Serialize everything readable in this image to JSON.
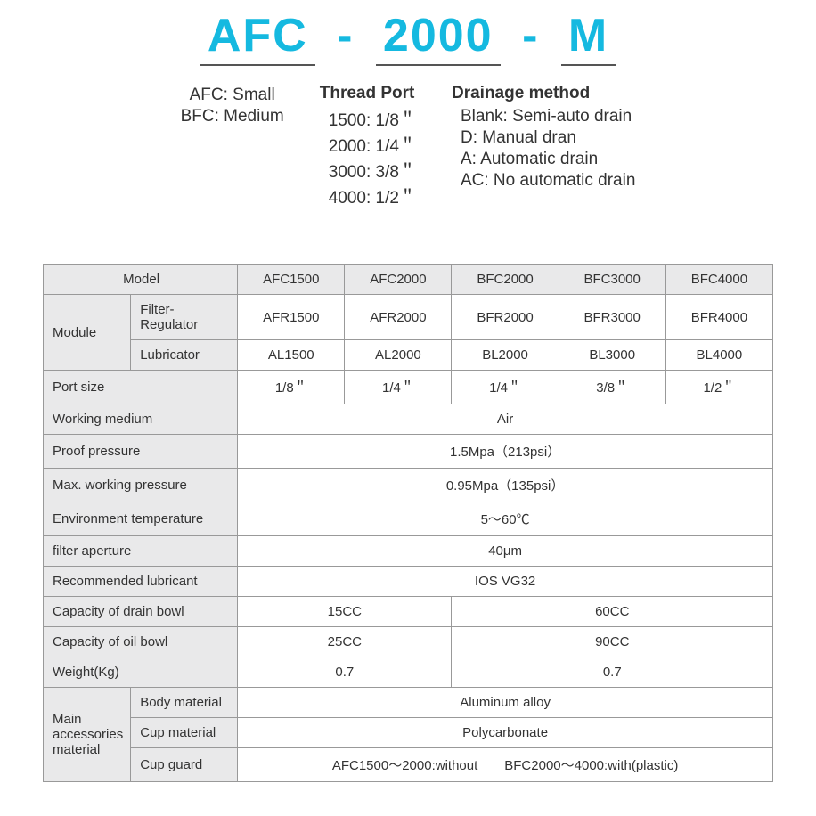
{
  "header": {
    "title_parts": [
      "AFC",
      "2000",
      "M"
    ],
    "title_color": "#15b9e0",
    "title_fontsize": 52
  },
  "legend": {
    "size": {
      "heading": "",
      "items": [
        "AFC: Small",
        "BFC: Medium"
      ]
    },
    "thread": {
      "heading": "Thread Port",
      "items": [
        "1500: 1/8＂",
        "2000: 1/4＂",
        "3000: 3/8＂",
        "4000: 1/2＂"
      ]
    },
    "drainage": {
      "heading": "Drainage method",
      "items": [
        "Blank:  Semi-auto drain",
        "D:  Manual dran",
        "A:  Automatic drain",
        "AC:  No automatic drain"
      ]
    }
  },
  "table": {
    "columns": [
      "AFC1500",
      "AFC2000",
      "BFC2000",
      "BFC3000",
      "BFC4000"
    ],
    "model_label": "Model",
    "module": {
      "label": "Module",
      "rows": [
        {
          "label": "Filter-Regulator",
          "values": [
            "AFR1500",
            "AFR2000",
            "BFR2000",
            "BFR3000",
            "BFR4000"
          ]
        },
        {
          "label": "Lubricator",
          "values": [
            "AL1500",
            "AL2000",
            "BL2000",
            "BL3000",
            "BL4000"
          ]
        }
      ]
    },
    "port_size": {
      "label": "Port size",
      "values": [
        "1/8＂",
        "1/4＂",
        "1/4＂",
        "3/8＂",
        "1/2＂"
      ]
    },
    "full_span_rows": [
      {
        "label": "Working medium",
        "value": "Air"
      },
      {
        "label": "Proof pressure",
        "value": "1.5Mpa（213psi）"
      },
      {
        "label": "Max. working pressure",
        "value": "0.95Mpa（135psi）"
      },
      {
        "label": "Environment temperature",
        "value": "5～60℃"
      },
      {
        "label": "filter aperture",
        "value": "40μm"
      },
      {
        "label": "Recommended lubricant",
        "value": "IOS VG32"
      }
    ],
    "split_rows": [
      {
        "label": "Capacity of drain bowl",
        "left": "15CC",
        "right": "60CC"
      },
      {
        "label": "Capacity of oil bowl",
        "left": "25CC",
        "right": "90CC"
      },
      {
        "label": "Weight(Kg)",
        "left": "0.7",
        "right": "0.7"
      }
    ],
    "materials": {
      "label": "Main accessories material",
      "rows": [
        {
          "label": "Body material",
          "value": "Aluminum alloy"
        },
        {
          "label": "Cup material",
          "value": "Polycarbonate"
        },
        {
          "label": "Cup guard",
          "value": "AFC1500～2000:without　　BFC2000～4000:with(plastic)"
        }
      ]
    },
    "header_bg": "#e9e9ea",
    "border_color": "#999999"
  }
}
